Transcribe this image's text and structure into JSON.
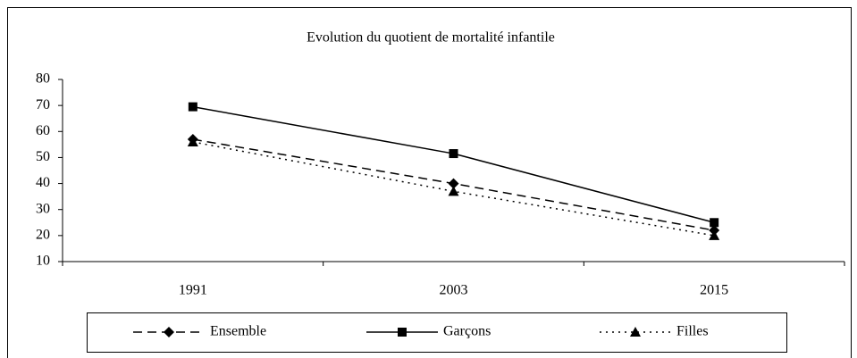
{
  "chart_data": {
    "type": "line",
    "title": "Evolution du quotient de mortalité infantile",
    "categories": [
      "1991",
      "2003",
      "2015"
    ],
    "series": [
      {
        "name": "Ensemble",
        "color": "#000000",
        "dash": "dashed",
        "marker": "diamond",
        "values": [
          57,
          40,
          22
        ]
      },
      {
        "name": "Garçons",
        "color": "#000000",
        "dash": "solid",
        "marker": "square",
        "values": [
          69.5,
          51.5,
          25
        ]
      },
      {
        "name": "Filles",
        "color": "#000000",
        "dash": "dotted",
        "marker": "triangle",
        "values": [
          56,
          37,
          20
        ]
      }
    ],
    "ylim": [
      10,
      80
    ],
    "yticks": [
      10,
      20,
      30,
      40,
      50,
      60,
      70,
      80
    ],
    "grid": false,
    "legend": "bottom"
  }
}
